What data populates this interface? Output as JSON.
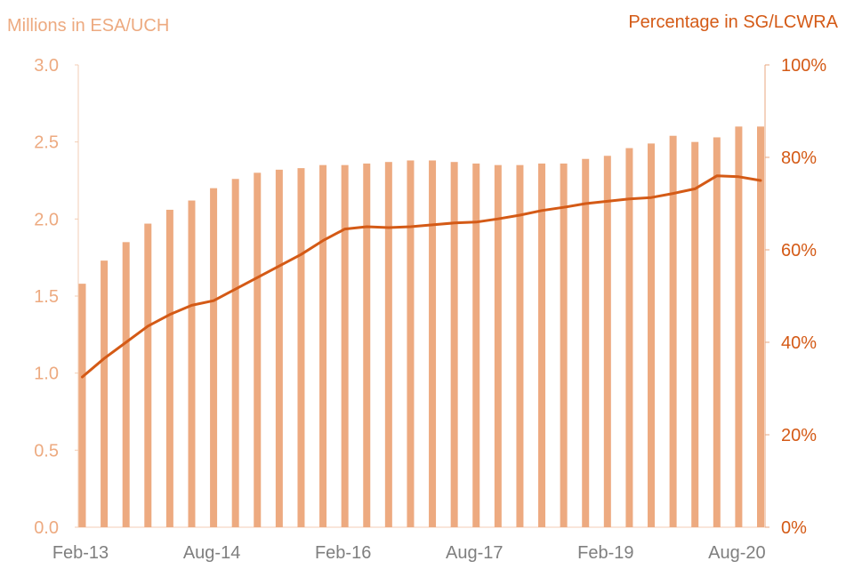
{
  "chart_data": {
    "type": "bar",
    "left_axis_title": "Millions in ESA/UCH",
    "right_axis_title": "Percentage in SG/LCWRA",
    "colors": {
      "bars": "#EDAA80",
      "line": "#D45A16",
      "left_axis": "#EDAA80",
      "right_axis": "#D45A16",
      "x_axis": "#7F7F7F"
    },
    "y_left": {
      "min": 0,
      "max": 3.0,
      "ticks": [
        "0.0",
        "0.5",
        "1.0",
        "1.5",
        "2.0",
        "2.5",
        "3.0"
      ]
    },
    "y_right": {
      "min": 0,
      "max": 100,
      "ticks": [
        "0%",
        "20%",
        "40%",
        "60%",
        "80%",
        "100%"
      ]
    },
    "x_tick_labels": [
      "Feb-13",
      "Aug-14",
      "Feb-16",
      "Aug-17",
      "Feb-19",
      "Aug-20"
    ],
    "x_tick_indices": [
      0,
      6,
      12,
      18,
      24,
      30
    ],
    "categories": [
      "Feb-13",
      "May-13",
      "Aug-13",
      "Nov-13",
      "Feb-14",
      "May-14",
      "Aug-14",
      "Nov-14",
      "Feb-15",
      "May-15",
      "Aug-15",
      "Nov-15",
      "Feb-16",
      "May-16",
      "Aug-16",
      "Nov-16",
      "Feb-17",
      "May-17",
      "Aug-17",
      "Nov-17",
      "Feb-18",
      "May-18",
      "Aug-18",
      "Nov-18",
      "Feb-19",
      "May-19",
      "Aug-19",
      "Nov-19",
      "Feb-20",
      "May-20",
      "Aug-20",
      "Nov-20"
    ],
    "series": [
      {
        "type": "bar",
        "axis": "left",
        "values": [
          1.58,
          1.73,
          1.85,
          1.97,
          2.06,
          2.12,
          2.2,
          2.26,
          2.3,
          2.32,
          2.33,
          2.35,
          2.35,
          2.36,
          2.37,
          2.38,
          2.38,
          2.37,
          2.36,
          2.35,
          2.35,
          2.36,
          2.36,
          2.39,
          2.41,
          2.46,
          2.49,
          2.54,
          2.5,
          2.53,
          2.6,
          2.6
        ]
      },
      {
        "type": "line",
        "axis": "right",
        "values": [
          32.5,
          36.5,
          40,
          43.5,
          46,
          48,
          49,
          51.5,
          54,
          56.5,
          59,
          62,
          64.5,
          65,
          64.8,
          65,
          65.4,
          65.8,
          66,
          66.7,
          67.5,
          68.5,
          69.2,
          70,
          70.5,
          71,
          71.3,
          72.2,
          73.2,
          76,
          75.8,
          75
        ]
      }
    ]
  }
}
